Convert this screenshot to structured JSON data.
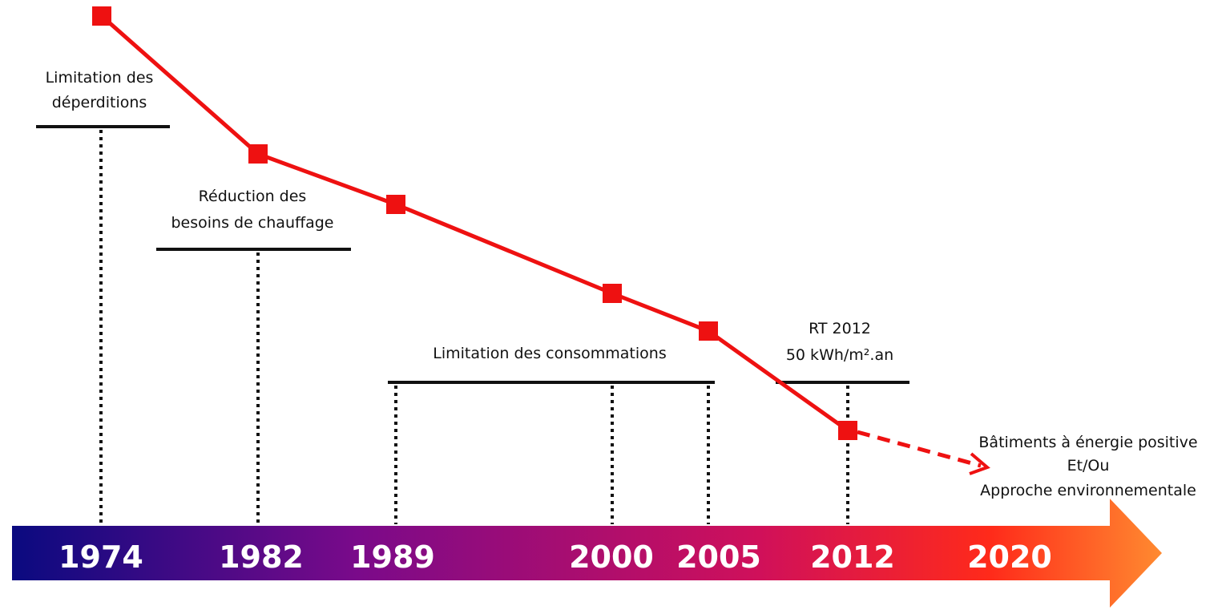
{
  "timeline": {
    "years": [
      "1974",
      "1982",
      "1989",
      "2000",
      "2005",
      "2012",
      "2020"
    ],
    "gradient_colors": [
      "#0a0a80",
      "#7a0a8a",
      "#d0105a",
      "#ff2a1a",
      "#ff8a30"
    ],
    "year_text_color": "#ffffff"
  },
  "phases": {
    "deperditions": [
      "Limitation des",
      "déperditions"
    ],
    "chauffage": [
      "Réduction des",
      "besoins de chauffage"
    ],
    "consommations": [
      "Limitation des consommations"
    ],
    "rt2012": [
      "RT 2012",
      "50 kWh/m².an"
    ],
    "future": [
      "Bâtiments à énergie positive",
      "Et/Ou",
      "Approche environnementale"
    ]
  },
  "trend": {
    "color": "#ee1111",
    "points": [
      {
        "year": "1974"
      },
      {
        "year": "1982"
      },
      {
        "year": "1989"
      },
      {
        "year": "2000"
      },
      {
        "year": "2005"
      },
      {
        "year": "2012"
      }
    ],
    "projection": {
      "from": "2012",
      "style": "dashed-arrow"
    }
  }
}
